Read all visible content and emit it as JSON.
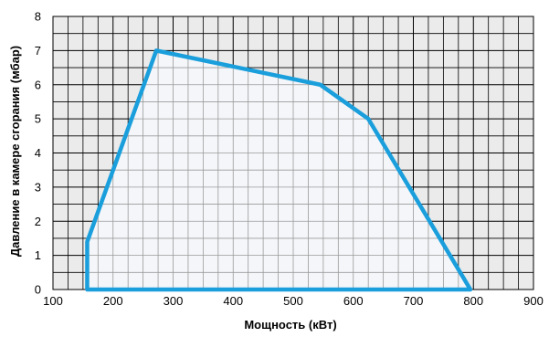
{
  "chart_data": {
    "type": "area",
    "xlabel": "Мощность (кВт)",
    "ylabel": "Давление в камере сгорания (мбар)",
    "xlim": [
      100,
      900
    ],
    "ylim": [
      0,
      8
    ],
    "x_ticks": [
      "100",
      "200",
      "300",
      "400",
      "500",
      "600",
      "700",
      "800",
      "900"
    ],
    "y_ticks": [
      "0",
      "1",
      "2",
      "3",
      "4",
      "5",
      "6",
      "7",
      "8"
    ],
    "x_tick_values": [
      100,
      200,
      300,
      400,
      500,
      600,
      700,
      800,
      900
    ],
    "y_tick_values": [
      0,
      1,
      2,
      3,
      4,
      5,
      6,
      7,
      8
    ],
    "grid": true,
    "series": [
      {
        "x": [
          157,
          157,
          272,
          545,
          625,
          795,
          157
        ],
        "y": [
          0,
          1.4,
          7.0,
          6.0,
          5.0,
          0,
          0
        ]
      }
    ],
    "colors": {
      "line": "#1a9fdc",
      "fill": "#f4f6f9",
      "plot_background": "#ebebeb",
      "grid": "#000000"
    }
  }
}
